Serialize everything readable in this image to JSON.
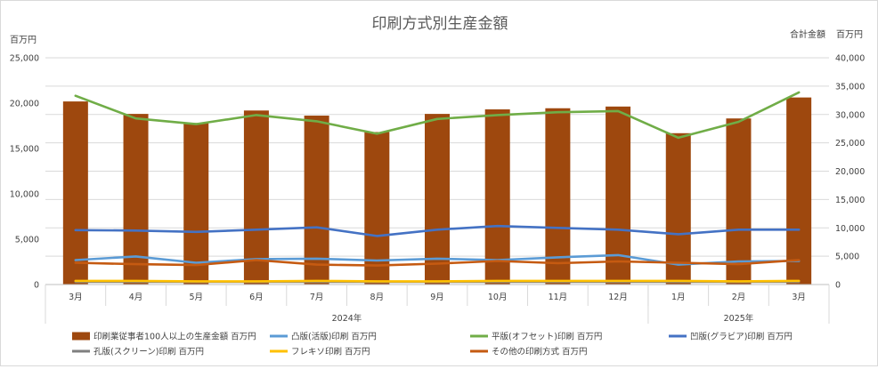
{
  "chart_data": {
    "type": "bar",
    "title": "印刷方式別生産金額",
    "ylabel_left": "百万円",
    "ylabel_right_prefix": "合計金額",
    "ylabel_right_unit": "百万円",
    "categories": [
      "3月",
      "4月",
      "5月",
      "6月",
      "7月",
      "8月",
      "9月",
      "10月",
      "11月",
      "12月",
      "1月",
      "2月",
      "3月"
    ],
    "year_groups": [
      {
        "label": "2024年",
        "count": 10
      },
      {
        "label": "2025年",
        "count": 3
      }
    ],
    "ylim_left": [
      0,
      25000
    ],
    "ylim_right": [
      0,
      40000
    ],
    "left_ticks": [
      "0",
      "5,000",
      "10,000",
      "15,000",
      "20,000",
      "25,000"
    ],
    "right_ticks": [
      "0",
      "5,000",
      "10,000",
      "15,000",
      "20,000",
      "25,000",
      "30,000",
      "35,000",
      "40,000"
    ],
    "grid": true,
    "legend_position": "bottom",
    "series": [
      {
        "name": "印刷業従事者100人以上の生産金額 百万円",
        "kind": "bar",
        "axis": "right",
        "color": "#9e480e",
        "values": [
          32300,
          30100,
          28500,
          30700,
          29800,
          26900,
          30100,
          30900,
          31100,
          31400,
          26700,
          29300,
          33000
        ]
      },
      {
        "name": "凸版(活版)印刷 百万円",
        "kind": "line",
        "axis": "left",
        "color": "#5b9bd5",
        "values": [
          2700,
          3100,
          2400,
          2800,
          2850,
          2650,
          2850,
          2700,
          3000,
          3250,
          2200,
          2550,
          2600
        ]
      },
      {
        "name": "平版(オフセット)印刷 百万円",
        "kind": "line",
        "axis": "right",
        "color": "#70ad47",
        "values": [
          33300,
          29300,
          28300,
          29900,
          28800,
          26600,
          29200,
          29900,
          30400,
          30600,
          25900,
          28700,
          33900
        ]
      },
      {
        "name": "凹版(グラビア)印刷 百万円",
        "kind": "line",
        "axis": "left",
        "color": "#4472c4",
        "values": [
          6000,
          5950,
          5800,
          6050,
          6300,
          5350,
          6050,
          6450,
          6250,
          6050,
          5550,
          6050,
          6050
        ]
      },
      {
        "name": "孔版(スクリーン)印刷 百万円",
        "kind": "line",
        "axis": "left",
        "color": "#7f7f7f",
        "values": [
          300,
          300,
          300,
          300,
          300,
          300,
          300,
          300,
          300,
          300,
          300,
          300,
          300
        ]
      },
      {
        "name": "フレキソ印刷 百万円",
        "kind": "line",
        "axis": "left",
        "color": "#ffc000",
        "values": [
          400,
          400,
          350,
          350,
          400,
          350,
          350,
          400,
          400,
          400,
          400,
          350,
          400
        ]
      },
      {
        "name": "その他の印刷方式 百万円",
        "kind": "line",
        "axis": "left",
        "color": "#c55a11",
        "values": [
          2400,
          2250,
          2150,
          2700,
          2200,
          2100,
          2300,
          2600,
          2350,
          2550,
          2400,
          2250,
          2700
        ]
      }
    ]
  }
}
